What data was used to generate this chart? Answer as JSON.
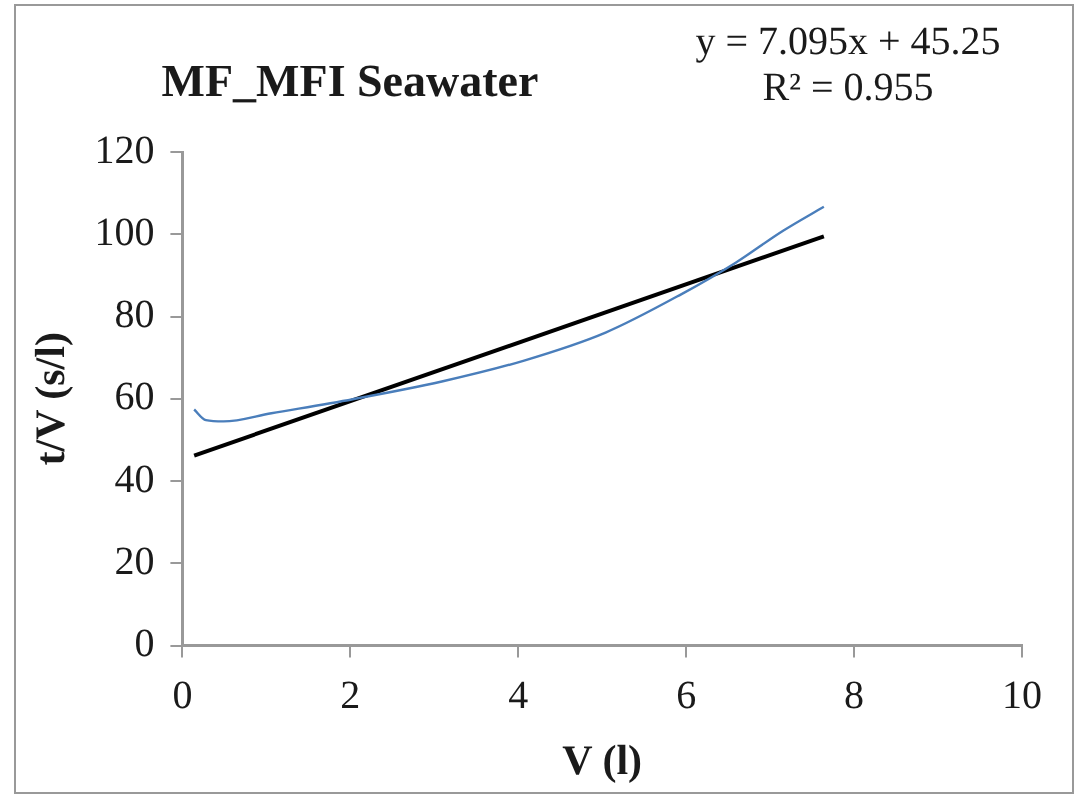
{
  "chart_data": {
    "type": "line",
    "title": "MF_MFI Seawater",
    "xlabel": "V (l)",
    "ylabel": "t/V (s/l)",
    "annotations": [
      "y = 7.095x + 45.25",
      "R² = 0.955"
    ],
    "series": [
      {
        "color": "#4a7ebb",
        "x": [
          0.14,
          0.28,
          0.49,
          1.06,
          2.03,
          3.09,
          4.07,
          5.04,
          5.94,
          6.59,
          7.15,
          7.64
        ],
        "values": [
          57.4,
          54.8,
          54.5,
          56.5,
          59.9,
          64.2,
          69.3,
          76.1,
          85.4,
          93.1,
          100.8,
          106.7
        ]
      },
      {
        "color": "#000000",
        "x": [
          0.14,
          7.64
        ],
        "values": [
          46.2,
          99.5
        ]
      }
    ],
    "xlim": [
      0,
      10
    ],
    "xticks": [
      0,
      2,
      4,
      6,
      8,
      10
    ],
    "ylim": [
      0,
      120
    ],
    "yticks": [
      0,
      20,
      40,
      60,
      80,
      100,
      120
    ],
    "grid": false,
    "legend": false,
    "marker": "none",
    "line_style": "solid"
  }
}
